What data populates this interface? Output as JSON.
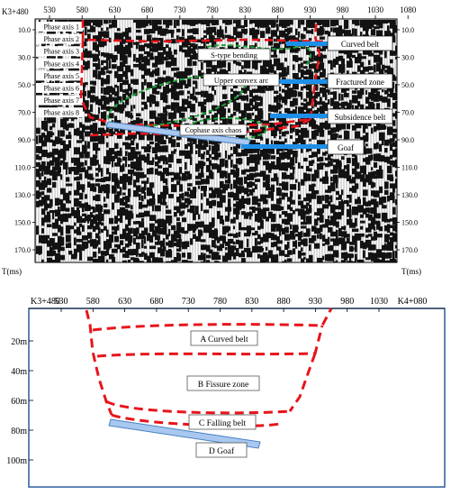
{
  "top_panel": {
    "station_start": "K3+480",
    "station_ticks": [
      "530",
      "580",
      "630",
      "680",
      "730",
      "780",
      "830",
      "880",
      "930",
      "980",
      "1030",
      "1080"
    ],
    "time_ticks": [
      "10.0",
      "30.0",
      "50.0",
      "70.0",
      "90.0",
      "110.0",
      "130.0",
      "150.0",
      "170.0"
    ],
    "axis_unit_left": "T(ms)",
    "axis_unit_right": "T(ms)",
    "phase_axes": [
      "Phase axis 1",
      "Phase axis 2",
      "Phase axis 3",
      "Phase axis 4",
      "Phase axis 5",
      "Phase axis 6",
      "Phase axis 7",
      "Phase axis 8"
    ],
    "annotations": [
      "S-type bending",
      "Upper convex arc",
      "Cophase axis chaos"
    ],
    "zone_labels": [
      "Curved belt",
      "Fractured zone",
      "Subsidence belt",
      "Goaf"
    ],
    "colors": {
      "boundary": "#e8141b",
      "green_curve": "#1fa33a",
      "blue_marker": "#1e8fe8",
      "trace": "#000000"
    }
  },
  "bottom_panel": {
    "station_start": "K3+480",
    "station_end": "K4+080",
    "station_ticks": [
      "530",
      "580",
      "630",
      "680",
      "730",
      "780",
      "830",
      "880",
      "930",
      "980",
      "1030"
    ],
    "depth_ticks": [
      "20m",
      "40m",
      "60m",
      "80m",
      "100m"
    ],
    "zones": [
      "A Curved belt",
      "B Fissure zone",
      "C Falling belt",
      "D Goaf"
    ],
    "colors": {
      "frame": "#2a5c9a",
      "boundary": "#e8141b",
      "goaf_strip": "#a8c8f0"
    }
  }
}
